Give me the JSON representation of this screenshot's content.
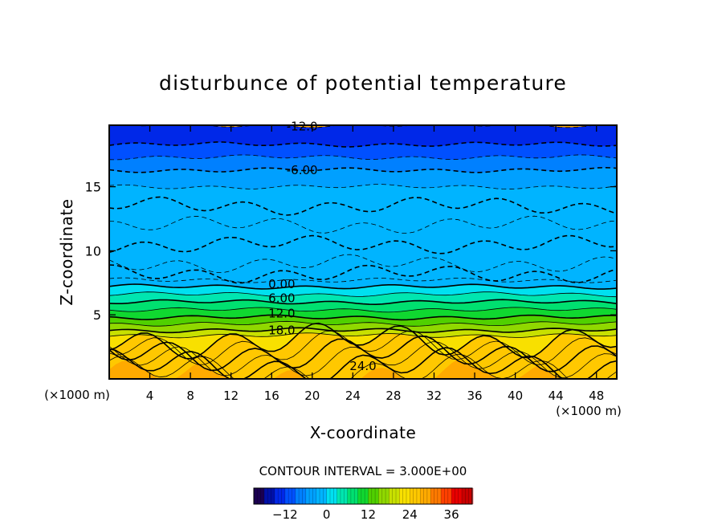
{
  "chart_data": {
    "type": "heatmap",
    "title": "disturbunce of potential temperature",
    "xlabel": "X-coordinate",
    "ylabel": "Z-coordinate",
    "x_unit_left": "(×1000 m)",
    "x_unit_right": "(×1000 m)",
    "xlim": [
      0,
      50
    ],
    "ylim": [
      0,
      19.8
    ],
    "xticks": [
      4,
      8,
      12,
      16,
      20,
      24,
      28,
      32,
      36,
      40,
      44,
      48
    ],
    "yticks": [
      5,
      10,
      15
    ],
    "z_levels": [
      0.25,
      0.5,
      1.0,
      1.5,
      2.0,
      2.5,
      3.0,
      3.4,
      3.8,
      4.3,
      4.8,
      5.4,
      6.0,
      6.6,
      7.2,
      7.7,
      8.2,
      9.0,
      10.5,
      12.0,
      13.5,
      15.0,
      16.3,
      17.3,
      18.3,
      19.8
    ],
    "band_values": [
      27,
      24,
      24,
      24,
      24,
      24,
      24,
      21,
      18,
      15,
      12,
      9,
      6,
      3,
      0,
      -3,
      -3,
      -3,
      -3,
      -3,
      -3,
      -3,
      -6,
      -9,
      -12,
      -15
    ],
    "contour_labels": [
      {
        "text": "-12.0",
        "x": 19,
        "z": 19.7
      },
      {
        "text": "-6.00",
        "x": 19,
        "z": 16.3
      },
      {
        "text": "0.00",
        "x": 17,
        "z": 7.4
      },
      {
        "text": "6.00",
        "x": 17,
        "z": 6.3
      },
      {
        "text": "12.0",
        "x": 17,
        "z": 5.1
      },
      {
        "text": "18.0",
        "x": 17,
        "z": 3.8
      },
      {
        "text": "24.0",
        "x": 25,
        "z": 1.0
      }
    ],
    "legend": {
      "title": "CONTOUR INTERVAL = 3.000E+00",
      "min": -21,
      "max": 42,
      "ticks": [
        -12,
        0,
        12,
        24,
        36
      ],
      "tick_labels": [
        "−12",
        "0",
        "12",
        "24",
        "36"
      ]
    },
    "colors": {
      "-21": "#1a0050",
      "-18": "#0010a8",
      "-15": "#0028e8",
      "-12": "#0050ff",
      "-9": "#0080ff",
      "-6": "#00a0ff",
      "-3": "#00b4ff",
      "0": "#00e0f0",
      "3": "#00e6b0",
      "6": "#00e070",
      "9": "#10d830",
      "12": "#50d000",
      "15": "#90d800",
      "18": "#c8e000",
      "21": "#f8e000",
      "24": "#ffc800",
      "27": "#ffaa00",
      "30": "#ff7a00",
      "33": "#ff4000",
      "36": "#e80000",
      "39": "#c80000",
      "42": "#ff9090"
    }
  }
}
